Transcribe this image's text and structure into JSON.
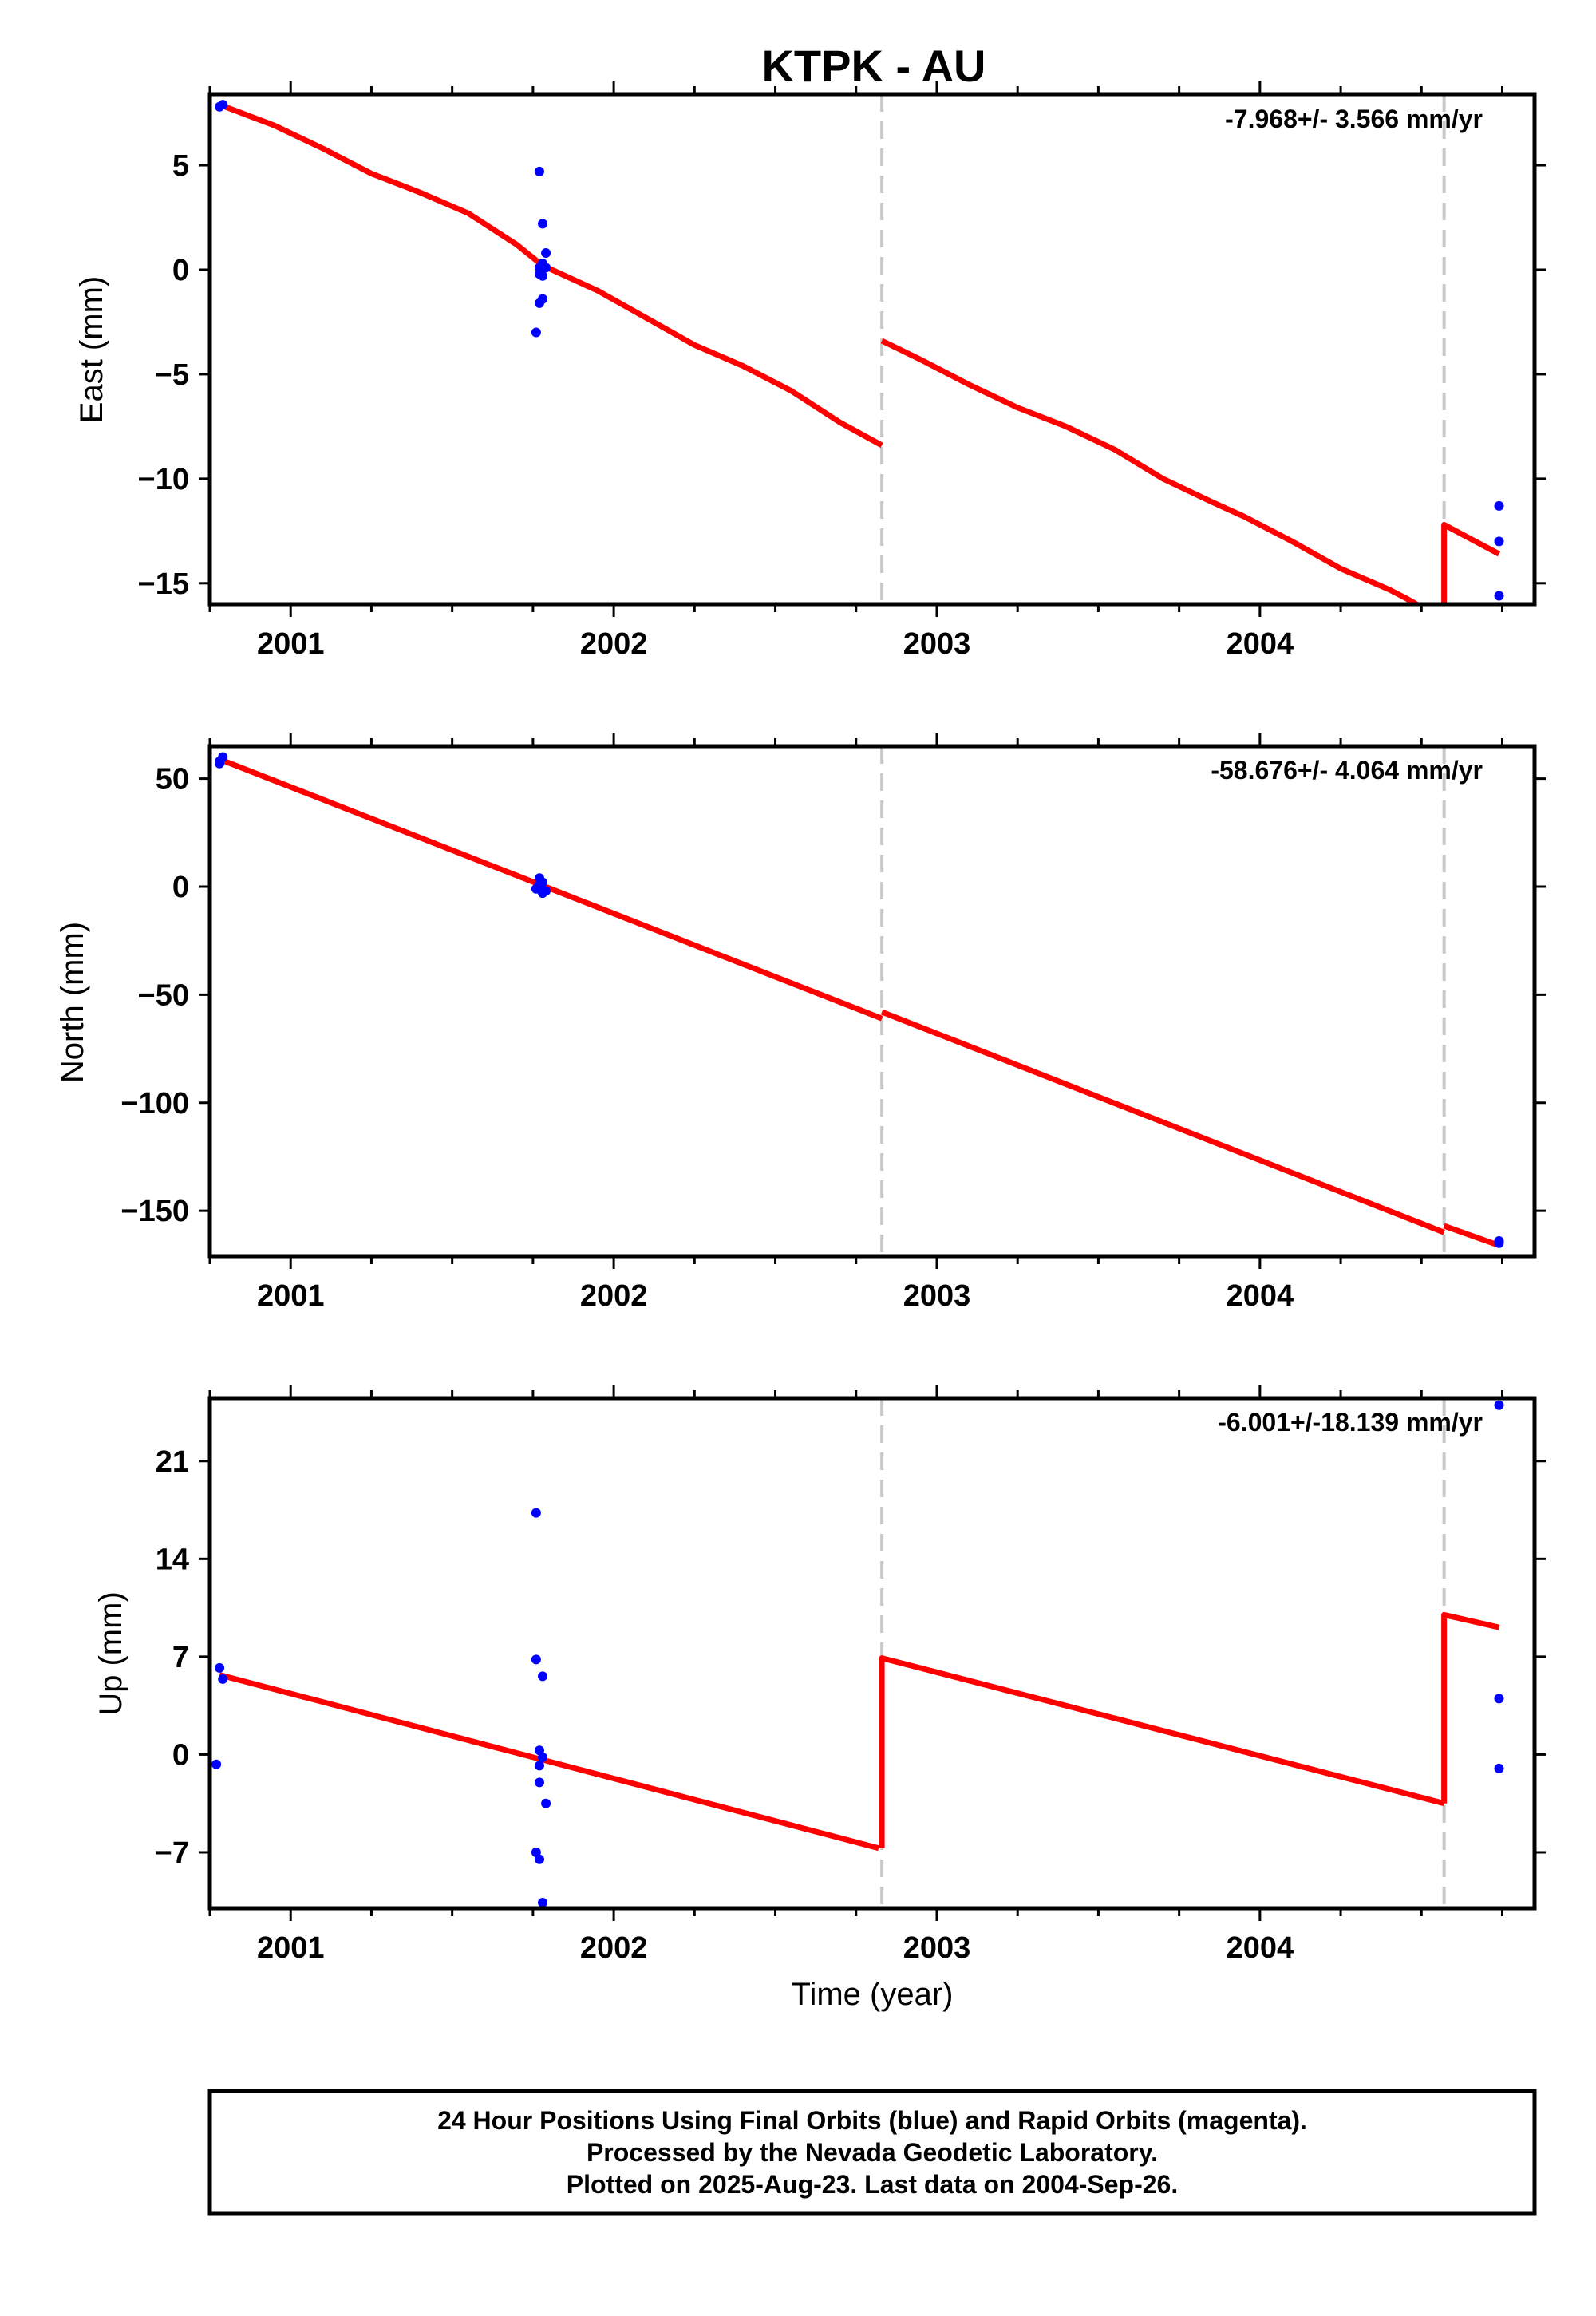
{
  "title": "KTPK - AU",
  "xlabel": "Time (year)",
  "footer": {
    "line1": "24 Hour Positions Using Final Orbits (blue) and Rapid Orbits (magenta).",
    "line2": "Processed by the Nevada Geodetic Laboratory.",
    "line3": "Plotted on 2025-Aug-23. Last data on 2004-Sep-26."
  },
  "colors": {
    "points": "#0000ff",
    "model": "#ff0000",
    "events": "#c8c8c8",
    "frame": "#000000"
  },
  "chart_data": [
    {
      "type": "scatter",
      "ylabel": "East (mm)",
      "rate_text": "-7.968+/- 3.566 mm/yr",
      "xlim": [
        2000.75,
        2004.85
      ],
      "ylim": [
        -16,
        8.4
      ],
      "yticks": [
        5,
        0,
        -5,
        -10,
        -15
      ],
      "xticks": [
        2001,
        2002,
        2003,
        2004
      ],
      "event_lines": [
        2002.83,
        2004.57
      ],
      "points": [
        [
          2000.78,
          7.8
        ],
        [
          2000.79,
          7.9
        ],
        [
          2001.77,
          4.7
        ],
        [
          2001.78,
          2.2
        ],
        [
          2001.79,
          0.8
        ],
        [
          2001.78,
          0.3
        ],
        [
          2001.77,
          0.1
        ],
        [
          2001.79,
          0.1
        ],
        [
          2001.77,
          -0.2
        ],
        [
          2001.78,
          -0.3
        ],
        [
          2001.78,
          -1.4
        ],
        [
          2001.77,
          -1.6
        ],
        [
          2001.76,
          -3.0
        ],
        [
          2004.74,
          -11.3
        ],
        [
          2004.74,
          -13.0
        ],
        [
          2004.74,
          -15.6
        ]
      ],
      "model_segments": [
        [
          [
            2000.78,
            7.9
          ],
          [
            2000.95,
            6.9
          ],
          [
            2001.1,
            5.8
          ],
          [
            2001.25,
            4.6
          ],
          [
            2001.4,
            3.7
          ],
          [
            2001.55,
            2.7
          ],
          [
            2001.7,
            1.2
          ],
          [
            2001.78,
            0.2
          ],
          [
            2001.95,
            -1.0
          ],
          [
            2002.1,
            -2.3
          ],
          [
            2002.25,
            -3.6
          ],
          [
            2002.4,
            -4.6
          ],
          [
            2002.55,
            -5.8
          ],
          [
            2002.7,
            -7.3
          ],
          [
            2002.83,
            -8.4
          ]
        ],
        [
          [
            2002.83,
            -3.4
          ],
          [
            2002.95,
            -4.3
          ],
          [
            2003.1,
            -5.5
          ],
          [
            2003.25,
            -6.6
          ],
          [
            2003.4,
            -7.5
          ],
          [
            2003.55,
            -8.6
          ],
          [
            2003.7,
            -10.0
          ],
          [
            2003.85,
            -11.1
          ],
          [
            2003.95,
            -11.8
          ],
          [
            2004.1,
            -13.0
          ],
          [
            2004.25,
            -14.3
          ],
          [
            2004.4,
            -15.3
          ],
          [
            2004.45,
            -15.7
          ],
          [
            2004.53,
            -16.4
          ]
        ],
        [
          [
            2004.57,
            -16.4
          ],
          [
            2004.57,
            -12.2
          ],
          [
            2004.74,
            -13.6
          ]
        ]
      ]
    },
    {
      "type": "scatter",
      "ylabel": "North (mm)",
      "rate_text": "-58.676+/- 4.064 mm/yr",
      "xlim": [
        2000.75,
        2004.85
      ],
      "ylim": [
        -171,
        65
      ],
      "yticks": [
        50,
        0,
        -50,
        -100,
        -150
      ],
      "xticks": [
        2001,
        2002,
        2003,
        2004
      ],
      "event_lines": [
        2002.83,
        2004.57
      ],
      "points": [
        [
          2000.78,
          58
        ],
        [
          2000.79,
          60
        ],
        [
          2000.78,
          57
        ],
        [
          2001.77,
          4
        ],
        [
          2001.78,
          2
        ],
        [
          2001.76,
          -1
        ],
        [
          2001.79,
          -2
        ],
        [
          2001.78,
          -3
        ],
        [
          2001.77,
          1
        ],
        [
          2004.74,
          -164
        ],
        [
          2004.74,
          -165
        ]
      ],
      "model_segments": [
        [
          [
            2000.78,
            59
          ],
          [
            2002.83,
            -61
          ]
        ],
        [
          [
            2002.83,
            -58
          ],
          [
            2004.57,
            -160
          ]
        ],
        [
          [
            2004.57,
            -157
          ],
          [
            2004.74,
            -166
          ]
        ]
      ]
    },
    {
      "type": "scatter",
      "ylabel": "Up (mm)",
      "rate_text": "-6.001+/-18.139 mm/yr",
      "xlim": [
        2000.75,
        2004.85
      ],
      "ylim": [
        -11,
        25.5
      ],
      "yticks": [
        21,
        14,
        7,
        0,
        -7
      ],
      "xticks": [
        2001,
        2002,
        2003,
        2004
      ],
      "event_lines": [
        2002.83,
        2004.57
      ],
      "points": [
        [
          2000.78,
          6.2
        ],
        [
          2000.79,
          5.4
        ],
        [
          2000.77,
          -0.7
        ],
        [
          2001.76,
          17.3
        ],
        [
          2001.76,
          6.8
        ],
        [
          2001.78,
          5.6
        ],
        [
          2001.77,
          0.3
        ],
        [
          2001.78,
          -0.2
        ],
        [
          2001.77,
          -0.8
        ],
        [
          2001.77,
          -2.0
        ],
        [
          2001.79,
          -3.5
        ],
        [
          2001.76,
          -7.0
        ],
        [
          2001.77,
          -7.5
        ],
        [
          2001.78,
          -10.6
        ],
        [
          2004.74,
          25.0
        ],
        [
          2004.74,
          4.0
        ],
        [
          2004.74,
          -1.0
        ]
      ],
      "model_segments": [
        [
          [
            2000.78,
            5.7
          ],
          [
            2002.82,
            -6.7
          ]
        ],
        [
          [
            2002.83,
            -6.7
          ],
          [
            2002.83,
            6.9
          ],
          [
            2004.57,
            -3.5
          ]
        ],
        [
          [
            2004.57,
            -3.5
          ],
          [
            2004.57,
            10.0
          ],
          [
            2004.74,
            9.1
          ]
        ]
      ]
    }
  ]
}
